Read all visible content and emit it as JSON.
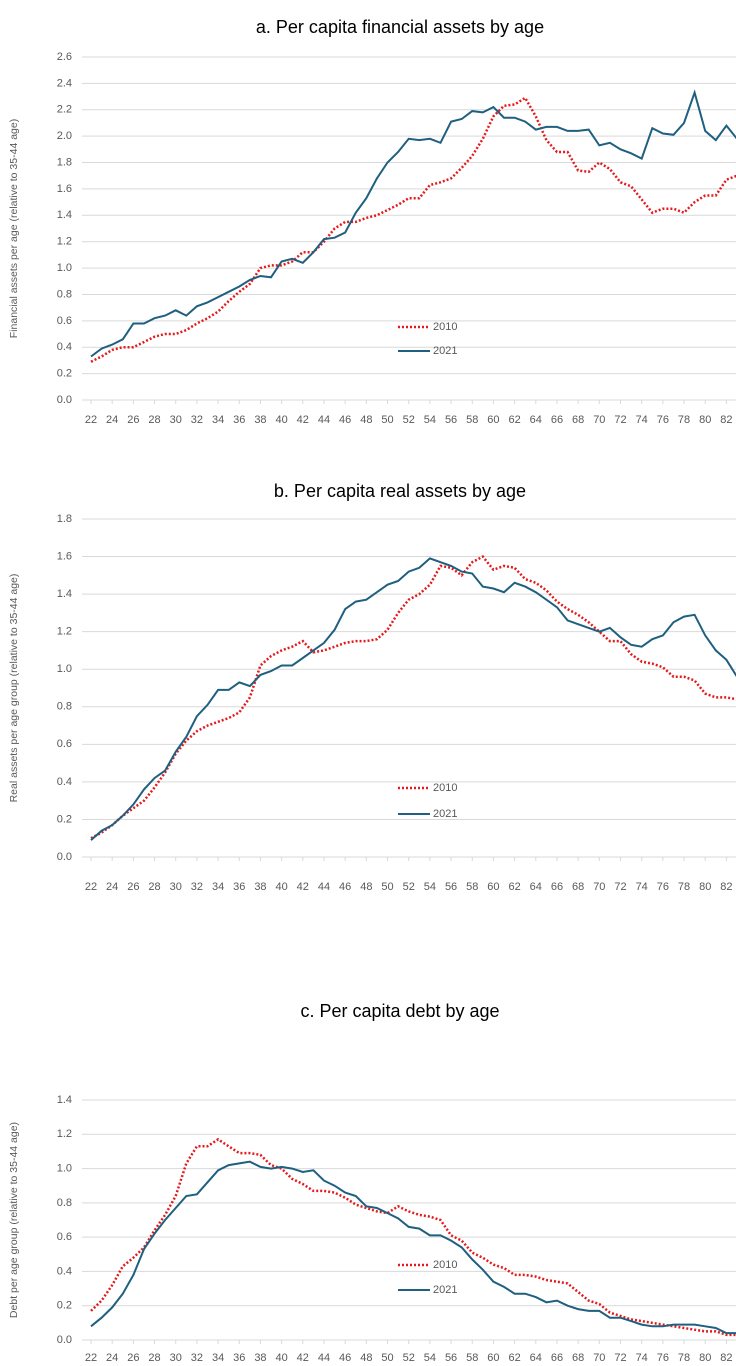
{
  "chart_data": [
    {
      "type": "line",
      "title": "a. Per capita financial assets by age",
      "y_label": "Financial assets per age (relative to 35-44 age)",
      "x": [
        22,
        23,
        24,
        25,
        26,
        27,
        28,
        29,
        30,
        31,
        32,
        33,
        34,
        35,
        36,
        37,
        38,
        39,
        40,
        41,
        42,
        43,
        44,
        45,
        46,
        47,
        48,
        49,
        50,
        51,
        52,
        53,
        54,
        55,
        56,
        57,
        58,
        59,
        60,
        61,
        62,
        63,
        64,
        65,
        66,
        67,
        68,
        69,
        70,
        71,
        72,
        73,
        74,
        75,
        76,
        77,
        78,
        79,
        80,
        81,
        82,
        83
      ],
      "xlim": [
        22,
        83
      ],
      "xticks": [
        22,
        24,
        26,
        28,
        30,
        32,
        34,
        36,
        38,
        40,
        42,
        44,
        46,
        48,
        50,
        52,
        54,
        56,
        58,
        60,
        62,
        64,
        66,
        68,
        70,
        72,
        74,
        76,
        78,
        80,
        82
      ],
      "ylim": [
        0,
        2.6
      ],
      "yticks": [
        {
          "value": 0,
          "label": "0.0"
        },
        0.2,
        0.4,
        0.6,
        0.8,
        {
          "value": 1,
          "label": "1.0"
        },
        1.2,
        1.4,
        1.6,
        1.8,
        {
          "value": 2,
          "label": "2.0"
        },
        2.2,
        2.4,
        2.6
      ],
      "grid": true,
      "legend": "center",
      "series": [
        {
          "name": "2010",
          "color": "#e41a1c",
          "dash": "dotted",
          "values": [
            0.29,
            0.33,
            0.38,
            0.4,
            0.4,
            0.44,
            0.48,
            0.5,
            0.5,
            0.53,
            0.58,
            0.62,
            0.67,
            0.75,
            0.82,
            0.88,
            1.0,
            1.02,
            1.02,
            1.05,
            1.12,
            1.12,
            1.2,
            1.3,
            1.35,
            1.35,
            1.38,
            1.4,
            1.44,
            1.48,
            1.53,
            1.53,
            1.63,
            1.65,
            1.68,
            1.76,
            1.85,
            1.98,
            2.15,
            2.23,
            2.24,
            2.29,
            2.15,
            1.97,
            1.88,
            1.88,
            1.74,
            1.73,
            1.8,
            1.75,
            1.65,
            1.62,
            1.52,
            1.42,
            1.45,
            1.45,
            1.42,
            1.5,
            1.55,
            1.55,
            1.67,
            1.7
          ]
        },
        {
          "name": "2021",
          "color": "#1f5f7f",
          "dash": "solid",
          "values": [
            0.33,
            0.39,
            0.42,
            0.46,
            0.58,
            0.58,
            0.62,
            0.64,
            0.68,
            0.64,
            0.71,
            0.74,
            0.78,
            0.82,
            0.86,
            0.91,
            0.94,
            0.93,
            1.05,
            1.07,
            1.04,
            1.12,
            1.22,
            1.23,
            1.27,
            1.42,
            1.53,
            1.68,
            1.8,
            1.88,
            1.98,
            1.97,
            1.98,
            1.95,
            2.11,
            2.13,
            2.19,
            2.18,
            2.22,
            2.14,
            2.14,
            2.11,
            2.05,
            2.07,
            2.07,
            2.04,
            2.04,
            2.05,
            1.93,
            1.95,
            1.9,
            1.87,
            1.83,
            2.06,
            2.02,
            2.01,
            2.1,
            2.33,
            2.04,
            1.97,
            2.08,
            1.98
          ]
        }
      ]
    },
    {
      "type": "line",
      "title": "b. Per capita real assets by age",
      "y_label": "Real assets per age group (relative to 35-44 age)",
      "x": [
        22,
        23,
        24,
        25,
        26,
        27,
        28,
        29,
        30,
        31,
        32,
        33,
        34,
        35,
        36,
        37,
        38,
        39,
        40,
        41,
        42,
        43,
        44,
        45,
        46,
        47,
        48,
        49,
        50,
        51,
        52,
        53,
        54,
        55,
        56,
        57,
        58,
        59,
        60,
        61,
        62,
        63,
        64,
        65,
        66,
        67,
        68,
        69,
        70,
        71,
        72,
        73,
        74,
        75,
        76,
        77,
        78,
        79,
        80,
        81,
        82,
        83
      ],
      "xlim": [
        22,
        83
      ],
      "xticks": [
        22,
        24,
        26,
        28,
        30,
        32,
        34,
        36,
        38,
        40,
        42,
        44,
        46,
        48,
        50,
        52,
        54,
        56,
        58,
        60,
        62,
        64,
        66,
        68,
        70,
        72,
        74,
        76,
        78,
        80,
        82
      ],
      "ylim": [
        0,
        1.8
      ],
      "yticks": [
        {
          "value": 0,
          "label": "0.0"
        },
        0.2,
        0.4,
        0.6,
        0.8,
        {
          "value": 1,
          "label": "1.0"
        },
        1.2,
        1.4,
        1.6,
        1.8
      ],
      "grid": true,
      "legend": "center",
      "series": [
        {
          "name": "2010",
          "color": "#e41a1c",
          "dash": "dotted",
          "values": [
            0.1,
            0.13,
            0.17,
            0.22,
            0.26,
            0.3,
            0.37,
            0.45,
            0.55,
            0.62,
            0.67,
            0.7,
            0.72,
            0.74,
            0.77,
            0.85,
            1.02,
            1.07,
            1.1,
            1.12,
            1.15,
            1.09,
            1.1,
            1.12,
            1.14,
            1.15,
            1.15,
            1.16,
            1.21,
            1.3,
            1.37,
            1.4,
            1.45,
            1.55,
            1.54,
            1.5,
            1.57,
            1.6,
            1.53,
            1.55,
            1.54,
            1.48,
            1.46,
            1.42,
            1.36,
            1.32,
            1.29,
            1.25,
            1.2,
            1.15,
            1.15,
            1.08,
            1.04,
            1.03,
            1.01,
            0.96,
            0.96,
            0.94,
            0.87,
            0.85,
            0.85,
            0.84
          ]
        },
        {
          "name": "2021",
          "color": "#1f5f7f",
          "dash": "solid",
          "values": [
            0.09,
            0.14,
            0.17,
            0.22,
            0.28,
            0.36,
            0.42,
            0.46,
            0.56,
            0.64,
            0.75,
            0.81,
            0.89,
            0.89,
            0.93,
            0.91,
            0.97,
            0.99,
            1.02,
            1.02,
            1.06,
            1.1,
            1.14,
            1.21,
            1.32,
            1.36,
            1.37,
            1.41,
            1.45,
            1.47,
            1.52,
            1.54,
            1.59,
            1.57,
            1.55,
            1.52,
            1.51,
            1.44,
            1.43,
            1.41,
            1.46,
            1.44,
            1.41,
            1.37,
            1.33,
            1.26,
            1.24,
            1.22,
            1.2,
            1.22,
            1.17,
            1.13,
            1.12,
            1.16,
            1.18,
            1.25,
            1.28,
            1.29,
            1.18,
            1.1,
            1.05,
            0.96
          ]
        }
      ]
    },
    {
      "type": "line",
      "title": "c. Per capita debt by age",
      "y_label": "Debt per age group (relative to 35-44 age)",
      "x": [
        22,
        23,
        24,
        25,
        26,
        27,
        28,
        29,
        30,
        31,
        32,
        33,
        34,
        35,
        36,
        37,
        38,
        39,
        40,
        41,
        42,
        43,
        44,
        45,
        46,
        47,
        48,
        49,
        50,
        51,
        52,
        53,
        54,
        55,
        56,
        57,
        58,
        59,
        60,
        61,
        62,
        63,
        64,
        65,
        66,
        67,
        68,
        69,
        70,
        71,
        72,
        73,
        74,
        75,
        76,
        77,
        78,
        79,
        80,
        81,
        82,
        83
      ],
      "xlim": [
        22,
        83
      ],
      "xticks": [
        22,
        24,
        26,
        28,
        30,
        32,
        34,
        36,
        38,
        40,
        42,
        44,
        46,
        48,
        50,
        52,
        54,
        56,
        58,
        60,
        62,
        64,
        66,
        68,
        70,
        72,
        74,
        76,
        78,
        80,
        82
      ],
      "ylim": [
        0,
        1.4
      ],
      "yticks": [
        {
          "value": 0,
          "label": "0.0"
        },
        0.2,
        0.4,
        0.6,
        0.8,
        {
          "value": 1,
          "label": "1.0"
        },
        1.2,
        1.4
      ],
      "grid": true,
      "legend": "center",
      "series": [
        {
          "name": "2010",
          "color": "#e41a1c",
          "dash": "dotted",
          "values": [
            0.17,
            0.23,
            0.32,
            0.43,
            0.48,
            0.54,
            0.64,
            0.73,
            0.84,
            1.03,
            1.13,
            1.13,
            1.17,
            1.13,
            1.09,
            1.09,
            1.08,
            1.02,
            1.0,
            0.94,
            0.91,
            0.87,
            0.87,
            0.86,
            0.83,
            0.79,
            0.77,
            0.75,
            0.74,
            0.78,
            0.75,
            0.73,
            0.72,
            0.7,
            0.61,
            0.58,
            0.51,
            0.48,
            0.44,
            0.42,
            0.38,
            0.38,
            0.37,
            0.35,
            0.34,
            0.33,
            0.28,
            0.23,
            0.21,
            0.16,
            0.14,
            0.12,
            0.11,
            0.1,
            0.09,
            0.08,
            0.07,
            0.06,
            0.05,
            0.05,
            0.03,
            0.03
          ]
        },
        {
          "name": "2021",
          "color": "#1f5f7f",
          "dash": "solid",
          "values": [
            0.08,
            0.13,
            0.19,
            0.27,
            0.38,
            0.53,
            0.62,
            0.7,
            0.77,
            0.84,
            0.85,
            0.92,
            0.99,
            1.02,
            1.03,
            1.04,
            1.01,
            1.0,
            1.01,
            1.0,
            0.98,
            0.99,
            0.93,
            0.9,
            0.86,
            0.84,
            0.78,
            0.77,
            0.74,
            0.71,
            0.66,
            0.65,
            0.61,
            0.61,
            0.58,
            0.54,
            0.47,
            0.41,
            0.34,
            0.31,
            0.27,
            0.27,
            0.25,
            0.22,
            0.23,
            0.2,
            0.18,
            0.17,
            0.17,
            0.13,
            0.13,
            0.11,
            0.09,
            0.08,
            0.08,
            0.09,
            0.09,
            0.09,
            0.08,
            0.07,
            0.04,
            0.04
          ]
        }
      ]
    }
  ]
}
